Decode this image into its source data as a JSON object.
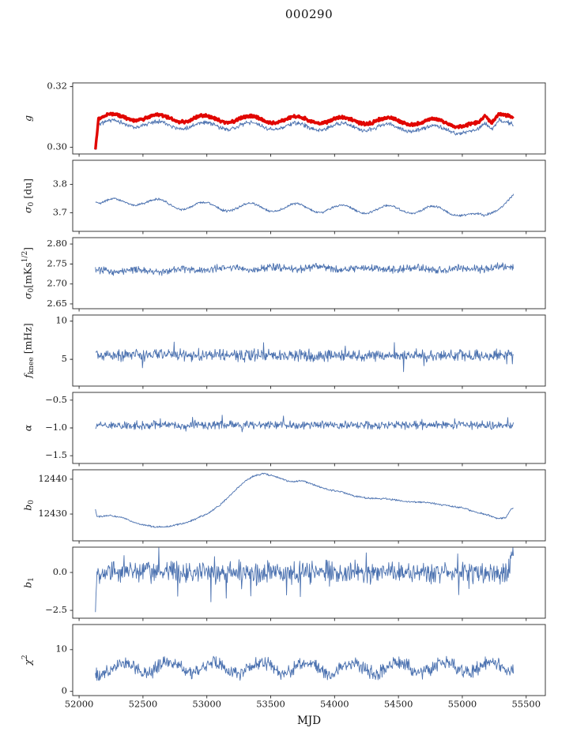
{
  "title": "000290",
  "chart_data": {
    "type": "line",
    "xlabel": "MJD",
    "xlim": [
      51950,
      55650
    ],
    "xticks": [
      52000,
      52500,
      53000,
      53500,
      54000,
      54500,
      55000,
      55500
    ],
    "x_start": 52128,
    "x_end": 55400,
    "x_step": 4,
    "colors": {
      "blue": "#4C72B0",
      "red": "#E10600",
      "frame": "#262626",
      "text": "#1a1a1a"
    },
    "panels": [
      {
        "ylabel_parts": [
          {
            "t": "g",
            "i": true
          }
        ],
        "ylim": [
          0.2978,
          0.3212
        ],
        "yticks": [
          {
            "v": 0.3,
            "label": "0.30"
          },
          {
            "v": 0.32,
            "label": "0.32"
          }
        ],
        "series": [
          {
            "color": "#4C72B0",
            "lw": 0.9,
            "noise": 0.0005,
            "seed": 11,
            "spiky": false,
            "osc": {
              "amp": 0.0011,
              "period": 360,
              "peak": 52620
            },
            "trend": [
              [
                52128,
                0.2998
              ],
              [
                52136,
                0.3012
              ],
              [
                52150,
                0.3078
              ],
              [
                52400,
                0.3078
              ],
              [
                52800,
                0.3072
              ],
              [
                53300,
                0.307
              ],
              [
                53800,
                0.3068
              ],
              [
                54300,
                0.3066
              ],
              [
                54700,
                0.3062
              ],
              [
                55000,
                0.3056
              ],
              [
                55120,
                0.3048
              ],
              [
                55180,
                0.3072
              ],
              [
                55230,
                0.3058
              ],
              [
                55290,
                0.3098
              ],
              [
                55340,
                0.3096
              ],
              [
                55380,
                0.3085
              ],
              [
                55400,
                0.3078
              ]
            ]
          },
          {
            "color": "#E10600",
            "lw": 3.4,
            "noise": 0.00035,
            "seed": 12,
            "spiky": false,
            "osc": {
              "amp": 0.0011,
              "period": 360,
              "peak": 52620
            },
            "trend": [
              [
                52128,
                0.3004
              ],
              [
                52138,
                0.304
              ],
              [
                52152,
                0.3098
              ],
              [
                52400,
                0.31
              ],
              [
                52800,
                0.3094
              ],
              [
                53300,
                0.3092
              ],
              [
                53800,
                0.309
              ],
              [
                54300,
                0.3088
              ],
              [
                54700,
                0.3084
              ],
              [
                55000,
                0.3078
              ],
              [
                55120,
                0.307
              ],
              [
                55180,
                0.3094
              ],
              [
                55230,
                0.308
              ],
              [
                55290,
                0.3122
              ],
              [
                55340,
                0.3118
              ],
              [
                55380,
                0.3106
              ],
              [
                55400,
                0.3098
              ]
            ]
          }
        ]
      },
      {
        "ylabel_parts": [
          {
            "t": "σ",
            "i": true
          },
          {
            "t": "0",
            "pos": "sub"
          },
          {
            "t": " [du]"
          }
        ],
        "ylim": [
          3.635,
          3.885
        ],
        "yticks": [
          {
            "v": 3.7,
            "label": "3.7"
          },
          {
            "v": 3.8,
            "label": "3.8"
          }
        ],
        "series": [
          {
            "color": "#4C72B0",
            "lw": 0.9,
            "noise": 0.003,
            "seed": 21,
            "spiky": false,
            "osc": {
              "amp": 0.014,
              "period": 360,
              "peak": 52620
            },
            "trend": [
              [
                52128,
                3.748
              ],
              [
                52170,
                3.733
              ],
              [
                52450,
                3.742
              ],
              [
                52800,
                3.726
              ],
              [
                53200,
                3.72
              ],
              [
                53700,
                3.718
              ],
              [
                54200,
                3.712
              ],
              [
                54700,
                3.712
              ],
              [
                55000,
                3.702
              ],
              [
                55120,
                3.684
              ],
              [
                55170,
                3.678
              ],
              [
                55230,
                3.7
              ],
              [
                55300,
                3.73
              ],
              [
                55360,
                3.756
              ],
              [
                55400,
                3.768
              ]
            ]
          }
        ]
      },
      {
        "ylabel_parts": [
          {
            "t": "σ",
            "i": true
          },
          {
            "t": "0",
            "pos": "sub"
          },
          {
            "t": "[mKs"
          },
          {
            "t": "1/2",
            "pos": "sup"
          },
          {
            "t": "]"
          }
        ],
        "ylim": [
          2.638,
          2.816
        ],
        "yticks": [
          {
            "v": 2.65,
            "label": "2.65"
          },
          {
            "v": 2.7,
            "label": "2.70"
          },
          {
            "v": 2.75,
            "label": "2.75"
          },
          {
            "v": 2.8,
            "label": "2.80"
          }
        ],
        "series": [
          {
            "color": "#4C72B0",
            "lw": 0.9,
            "noise": 0.007,
            "seed": 31,
            "spiky": false,
            "osc": {
              "amp": 0.003,
              "period": 360,
              "peak": 52800
            },
            "trend": [
              [
                52128,
                2.734
              ],
              [
                52600,
                2.734
              ],
              [
                53200,
                2.738
              ],
              [
                53800,
                2.74
              ],
              [
                54500,
                2.737
              ],
              [
                55000,
                2.738
              ],
              [
                55400,
                2.742
              ]
            ]
          }
        ]
      },
      {
        "ylabel_parts": [
          {
            "t": "f",
            "i": true
          },
          {
            "t": "knee",
            "pos": "sub"
          },
          {
            "t": " [mHz]"
          }
        ],
        "ylim": [
          1.5,
          10.8
        ],
        "yticks": [
          {
            "v": 5,
            "label": "5"
          },
          {
            "v": 10,
            "label": "10"
          }
        ],
        "series": [
          {
            "color": "#4C72B0",
            "lw": 0.9,
            "noise": 0.55,
            "seed": 41,
            "spiky": true,
            "trend": [
              [
                52128,
                5.6
              ],
              [
                53000,
                5.55
              ],
              [
                54000,
                5.5
              ],
              [
                55400,
                5.55
              ]
            ]
          }
        ]
      },
      {
        "ylabel_parts": [
          {
            "t": "α",
            "i": true
          }
        ],
        "ylim": [
          -1.64,
          -0.36
        ],
        "yticks": [
          {
            "v": -1.5,
            "label": "−1.5"
          },
          {
            "v": -1.0,
            "label": "−1.0"
          },
          {
            "v": -0.5,
            "label": "−0.5"
          }
        ],
        "series": [
          {
            "color": "#4C72B0",
            "lw": 0.9,
            "noise": 0.05,
            "seed": 51,
            "spiky": true,
            "trend": [
              [
                52128,
                -0.95
              ],
              [
                55400,
                -0.95
              ]
            ]
          }
        ]
      },
      {
        "ylabel_parts": [
          {
            "t": "b",
            "i": true
          },
          {
            "t": "0",
            "pos": "sub"
          }
        ],
        "ylim": [
          12422.3,
          12442.7
        ],
        "yticks": [
          {
            "v": 12430,
            "label": "12430"
          },
          {
            "v": 12440,
            "label": "12440"
          }
        ],
        "series": [
          {
            "color": "#4C72B0",
            "lw": 0.9,
            "noise": 0.18,
            "seed": 61,
            "spiky": false,
            "trend": [
              [
                52128,
                12431.3
              ],
              [
                52140,
                12429.2
              ],
              [
                52250,
                12429.6
              ],
              [
                52350,
                12428.8
              ],
              [
                52450,
                12427.3
              ],
              [
                52600,
                12426.2
              ],
              [
                52700,
                12426.4
              ],
              [
                52850,
                12427.6
              ],
              [
                53000,
                12430.0
              ],
              [
                53100,
                12432.5
              ],
              [
                53200,
                12436.0
              ],
              [
                53300,
                12439.5
              ],
              [
                53370,
                12441.0
              ],
              [
                53450,
                12441.6
              ],
              [
                53550,
                12440.6
              ],
              [
                53650,
                12439.2
              ],
              [
                53750,
                12439.6
              ],
              [
                53850,
                12438.2
              ],
              [
                53950,
                12437.0
              ],
              [
                54050,
                12436.4
              ],
              [
                54150,
                12435.2
              ],
              [
                54250,
                12434.6
              ],
              [
                54400,
                12434.4
              ],
              [
                54550,
                12433.6
              ],
              [
                54700,
                12433.4
              ],
              [
                54850,
                12432.6
              ],
              [
                55000,
                12431.8
              ],
              [
                55100,
                12430.6
              ],
              [
                55200,
                12429.8
              ],
              [
                55280,
                12428.6
              ],
              [
                55340,
                12429.0
              ],
              [
                55380,
                12431.4
              ],
              [
                55400,
                12431.6
              ]
            ]
          }
        ]
      },
      {
        "ylabel_parts": [
          {
            "t": "b",
            "i": true
          },
          {
            "t": "1",
            "pos": "sub"
          }
        ],
        "ylim": [
          -3.02,
          1.67
        ],
        "yticks": [
          {
            "v": -2.5,
            "label": "−2.5"
          },
          {
            "v": 0.0,
            "label": "0.0"
          }
        ],
        "series": [
          {
            "color": "#4C72B0",
            "lw": 0.9,
            "noise": 0.5,
            "seed": 71,
            "spiky": true,
            "trend": [
              [
                52128,
                -2.55
              ],
              [
                52138,
                -0.3
              ],
              [
                52160,
                0.05
              ],
              [
                55340,
                0.0
              ],
              [
                55370,
                0.3
              ],
              [
                55395,
                1.45
              ],
              [
                55400,
                1.0
              ]
            ]
          }
        ]
      },
      {
        "ylabel_parts": [
          {
            "t": "χ",
            "i": true
          },
          {
            "t": "2",
            "pos": "sup"
          }
        ],
        "ylim": [
          -1.0,
          16.0
        ],
        "yticks": [
          {
            "v": 0,
            "label": "0"
          },
          {
            "v": 10,
            "label": "10"
          }
        ],
        "series": [
          {
            "color": "#4C72B0",
            "lw": 0.9,
            "noise": 1.15,
            "seed": 81,
            "spiky": false,
            "osc": {
              "amp": 1.3,
              "period": 360,
              "peak": 52700
            },
            "trend": [
              [
                52128,
                5.2
              ],
              [
                52500,
                5.7
              ],
              [
                53000,
                5.7
              ],
              [
                54000,
                5.5
              ],
              [
                55000,
                5.7
              ],
              [
                55400,
                5.9
              ]
            ]
          }
        ]
      }
    ]
  }
}
